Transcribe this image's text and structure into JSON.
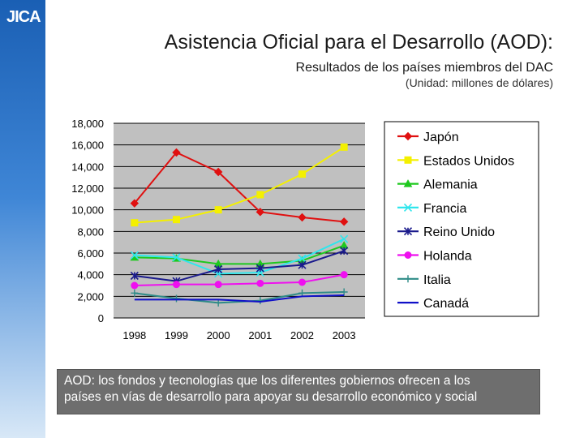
{
  "header": {
    "logo_text": "JICA",
    "title": "Asistencia Oficial para el Desarrollo (AOD):",
    "subtitle": "Resultados de los países miembros del DAC",
    "unit": "(Unidad: millones de dólares)"
  },
  "chart_data": {
    "type": "line",
    "title": "Asistencia Oficial para el Desarrollo (AOD): Resultados de los países miembros del DAC",
    "xlabel": "",
    "ylabel": "(Unidad: millones de dólares)",
    "categories": [
      "1998",
      "1999",
      "2000",
      "2001",
      "2002",
      "2003"
    ],
    "ylim": [
      0,
      18000
    ],
    "yticks": [
      0,
      2000,
      4000,
      6000,
      8000,
      10000,
      12000,
      14000,
      16000,
      18000
    ],
    "ytick_labels": [
      "0",
      "2,000",
      "4,000",
      "6,000",
      "8,000",
      "10,000",
      "12,000",
      "14,000",
      "16,000",
      "18,000"
    ],
    "legend_position": "right",
    "series": [
      {
        "name": "Japón",
        "color": "#e01010",
        "marker": "diamond",
        "values": [
          10600,
          15300,
          13500,
          9800,
          9300,
          8900
        ]
      },
      {
        "name": "Estados Unidos",
        "color": "#f4f000",
        "marker": "square",
        "values": [
          8800,
          9100,
          10000,
          11400,
          13300,
          15800
        ]
      },
      {
        "name": "Alemania",
        "color": "#1ec81e",
        "marker": "triangle",
        "values": [
          5600,
          5500,
          5000,
          5000,
          5300,
          6700
        ]
      },
      {
        "name": "Francia",
        "color": "#30e6ec",
        "marker": "x",
        "values": [
          5800,
          5600,
          4100,
          4200,
          5500,
          7300
        ]
      },
      {
        "name": "Reino Unido",
        "color": "#1a1a8c",
        "marker": "star",
        "values": [
          3900,
          3400,
          4500,
          4600,
          4900,
          6200
        ]
      },
      {
        "name": "Holanda",
        "color": "#ef10ef",
        "marker": "circle",
        "values": [
          3000,
          3100,
          3100,
          3200,
          3300,
          4000
        ]
      },
      {
        "name": "Italia",
        "color": "#2e8b87",
        "marker": "plus",
        "values": [
          2300,
          1800,
          1400,
          1600,
          2300,
          2400
        ]
      },
      {
        "name": "Canadá",
        "color": "#1010c8",
        "marker": "none",
        "values": [
          1700,
          1700,
          1700,
          1500,
          2000,
          2100
        ]
      }
    ]
  },
  "caption": {
    "line1": "AOD: los fondos y tecnologías que los diferentes gobiernos ofrecen a los",
    "line2": "países en vías de desarrollo para apoyar su desarrollo económico y social"
  }
}
